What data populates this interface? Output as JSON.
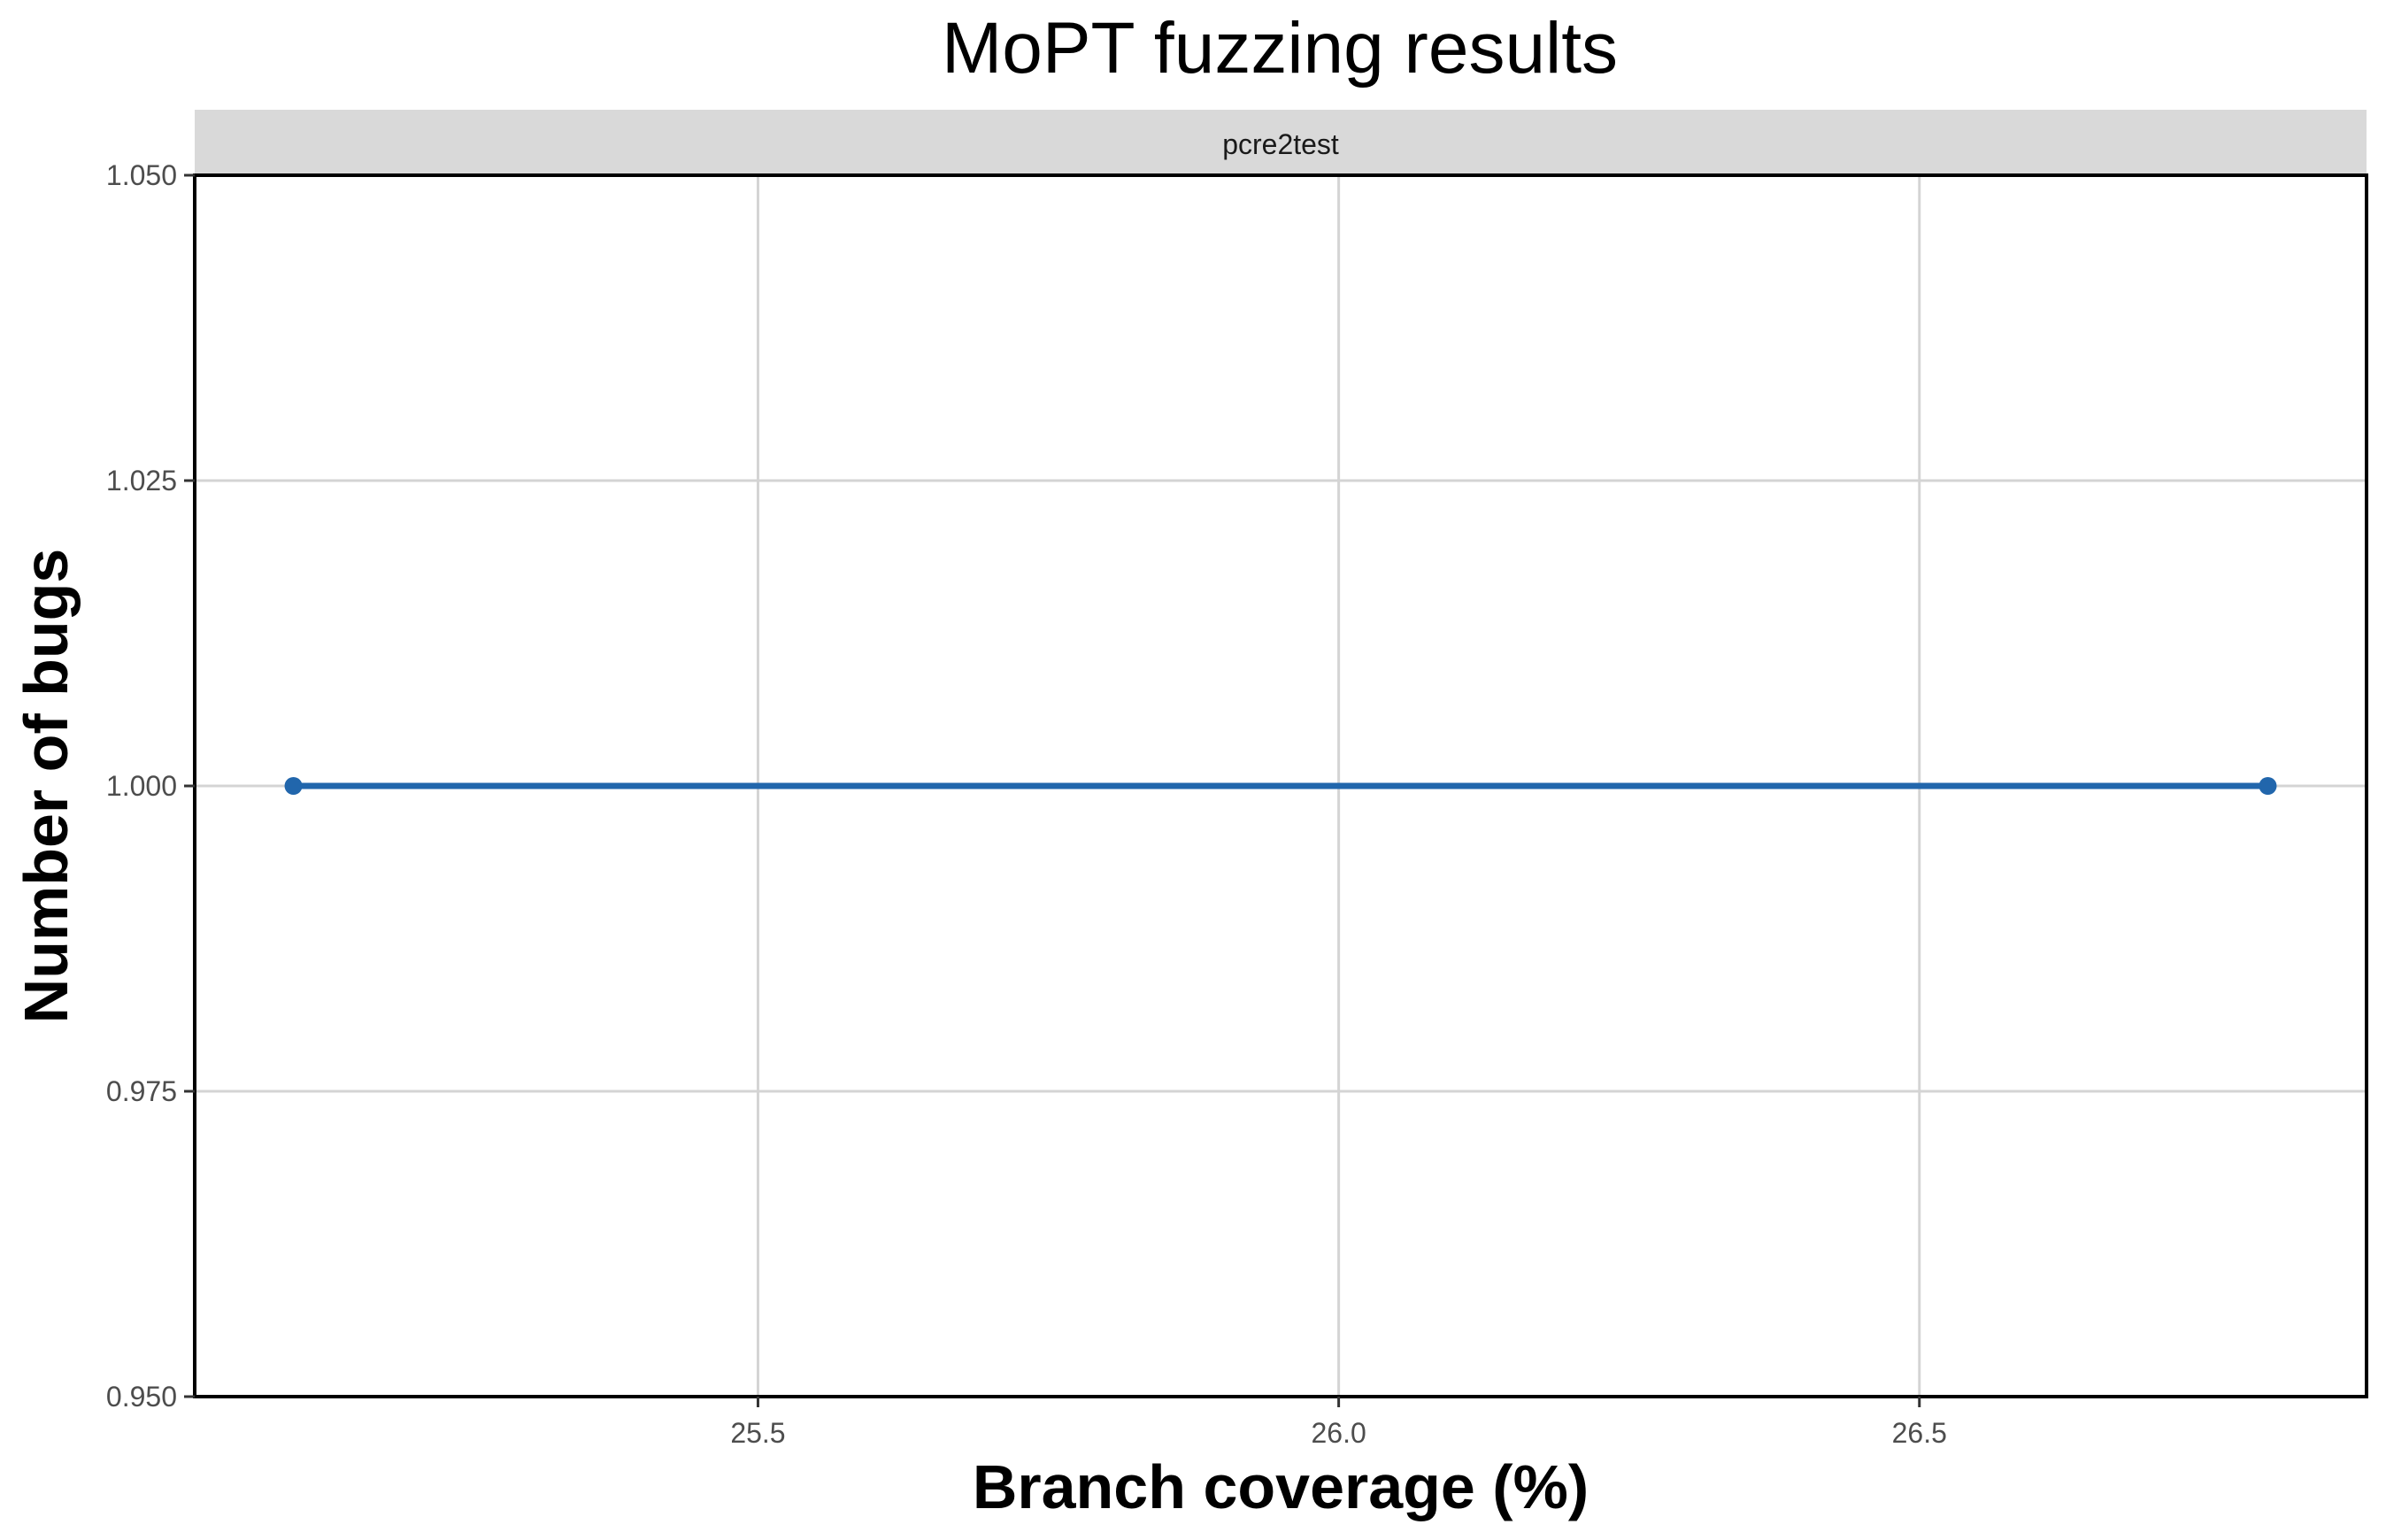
{
  "chart_data": {
    "type": "line",
    "title": "MoPT fuzzing results",
    "facet": "pcre2test",
    "xlabel": "Branch coverage (%)",
    "ylabel": "Number of bugs",
    "xlim": [
      25.015,
      26.885
    ],
    "ylim": [
      0.95,
      1.05
    ],
    "x_ticks": [
      {
        "value": 25.5,
        "label": "25.5"
      },
      {
        "value": 26.0,
        "label": "26.0"
      },
      {
        "value": 26.5,
        "label": "26.5"
      }
    ],
    "y_ticks": [
      {
        "value": 0.95,
        "label": "0.950"
      },
      {
        "value": 0.975,
        "label": "0.975"
      },
      {
        "value": 1.0,
        "label": "1.000"
      },
      {
        "value": 1.025,
        "label": "1.025"
      },
      {
        "value": 1.05,
        "label": "1.050"
      }
    ],
    "grid": true,
    "series": [
      {
        "color": "#2166ac",
        "points": [
          {
            "x": 25.1,
            "y": 1.0
          },
          {
            "x": 26.8,
            "y": 1.0
          }
        ]
      }
    ]
  }
}
